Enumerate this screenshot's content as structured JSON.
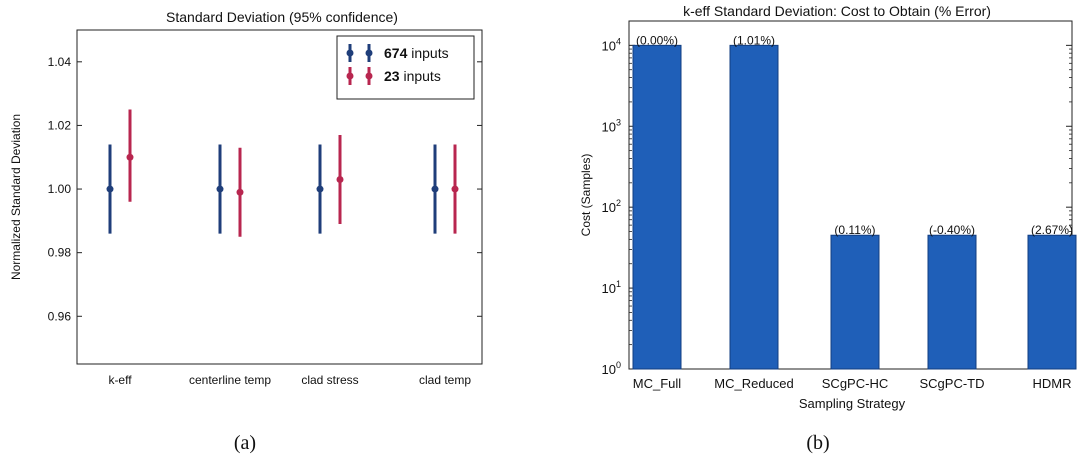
{
  "chart_data": [
    {
      "type": "scatter",
      "panel_label": "(a)",
      "title": "Standard Deviation (95% confidence)",
      "xlabel": "",
      "ylabel": "Normalized Standard Deviation",
      "categories": [
        "k-eff",
        "centerline temp",
        "clad stress",
        "clad temp"
      ],
      "ylim": [
        0.945,
        1.05
      ],
      "yticks": [
        0.96,
        0.98,
        1.0,
        1.02,
        1.04
      ],
      "ytick_labels": [
        "0.96",
        "0.98",
        "1.00",
        "1.02",
        "1.04"
      ],
      "grid": false,
      "legend": "top-right",
      "series": [
        {
          "name": "674 inputs",
          "name_bold": "674",
          "name_rest": " inputs",
          "color": "#1f3e7a",
          "values": [
            1.0,
            1.0,
            1.0,
            1.0
          ],
          "lower": [
            0.986,
            0.986,
            0.986,
            0.986
          ],
          "upper": [
            1.014,
            1.014,
            1.014,
            1.014
          ]
        },
        {
          "name": "23 inputs",
          "name_bold": "23",
          "name_rest": " inputs",
          "color": "#b8264f",
          "values": [
            1.01,
            0.999,
            1.003,
            1.0
          ],
          "lower": [
            0.996,
            0.985,
            0.989,
            0.986
          ],
          "upper": [
            1.025,
            1.013,
            1.017,
            1.014
          ]
        }
      ]
    },
    {
      "type": "bar",
      "panel_label": "(b)",
      "title": "k-eff Standard Deviation: Cost to Obtain (% Error)",
      "xlabel": "Sampling Strategy",
      "ylabel": "Cost (Samples)",
      "yscale": "log",
      "ylim": [
        1,
        20000
      ],
      "yticks": [
        1,
        10,
        100,
        1000,
        10000
      ],
      "ytick_exponents": [
        "0",
        "1",
        "2",
        "3",
        "4"
      ],
      "ytick_base": "10",
      "grid": false,
      "color": "#1f5fb8",
      "categories": [
        "MC_Full",
        "MC_Reduced",
        "SCgPC-HC",
        "SCgPC-TD",
        "HDMR"
      ],
      "values": [
        10000,
        10000,
        45,
        45,
        45
      ],
      "data_labels": [
        "(0.00%)",
        "(1.01%)",
        "(0.11%)",
        "(-0.40%)",
        "(2.67%)"
      ]
    }
  ]
}
